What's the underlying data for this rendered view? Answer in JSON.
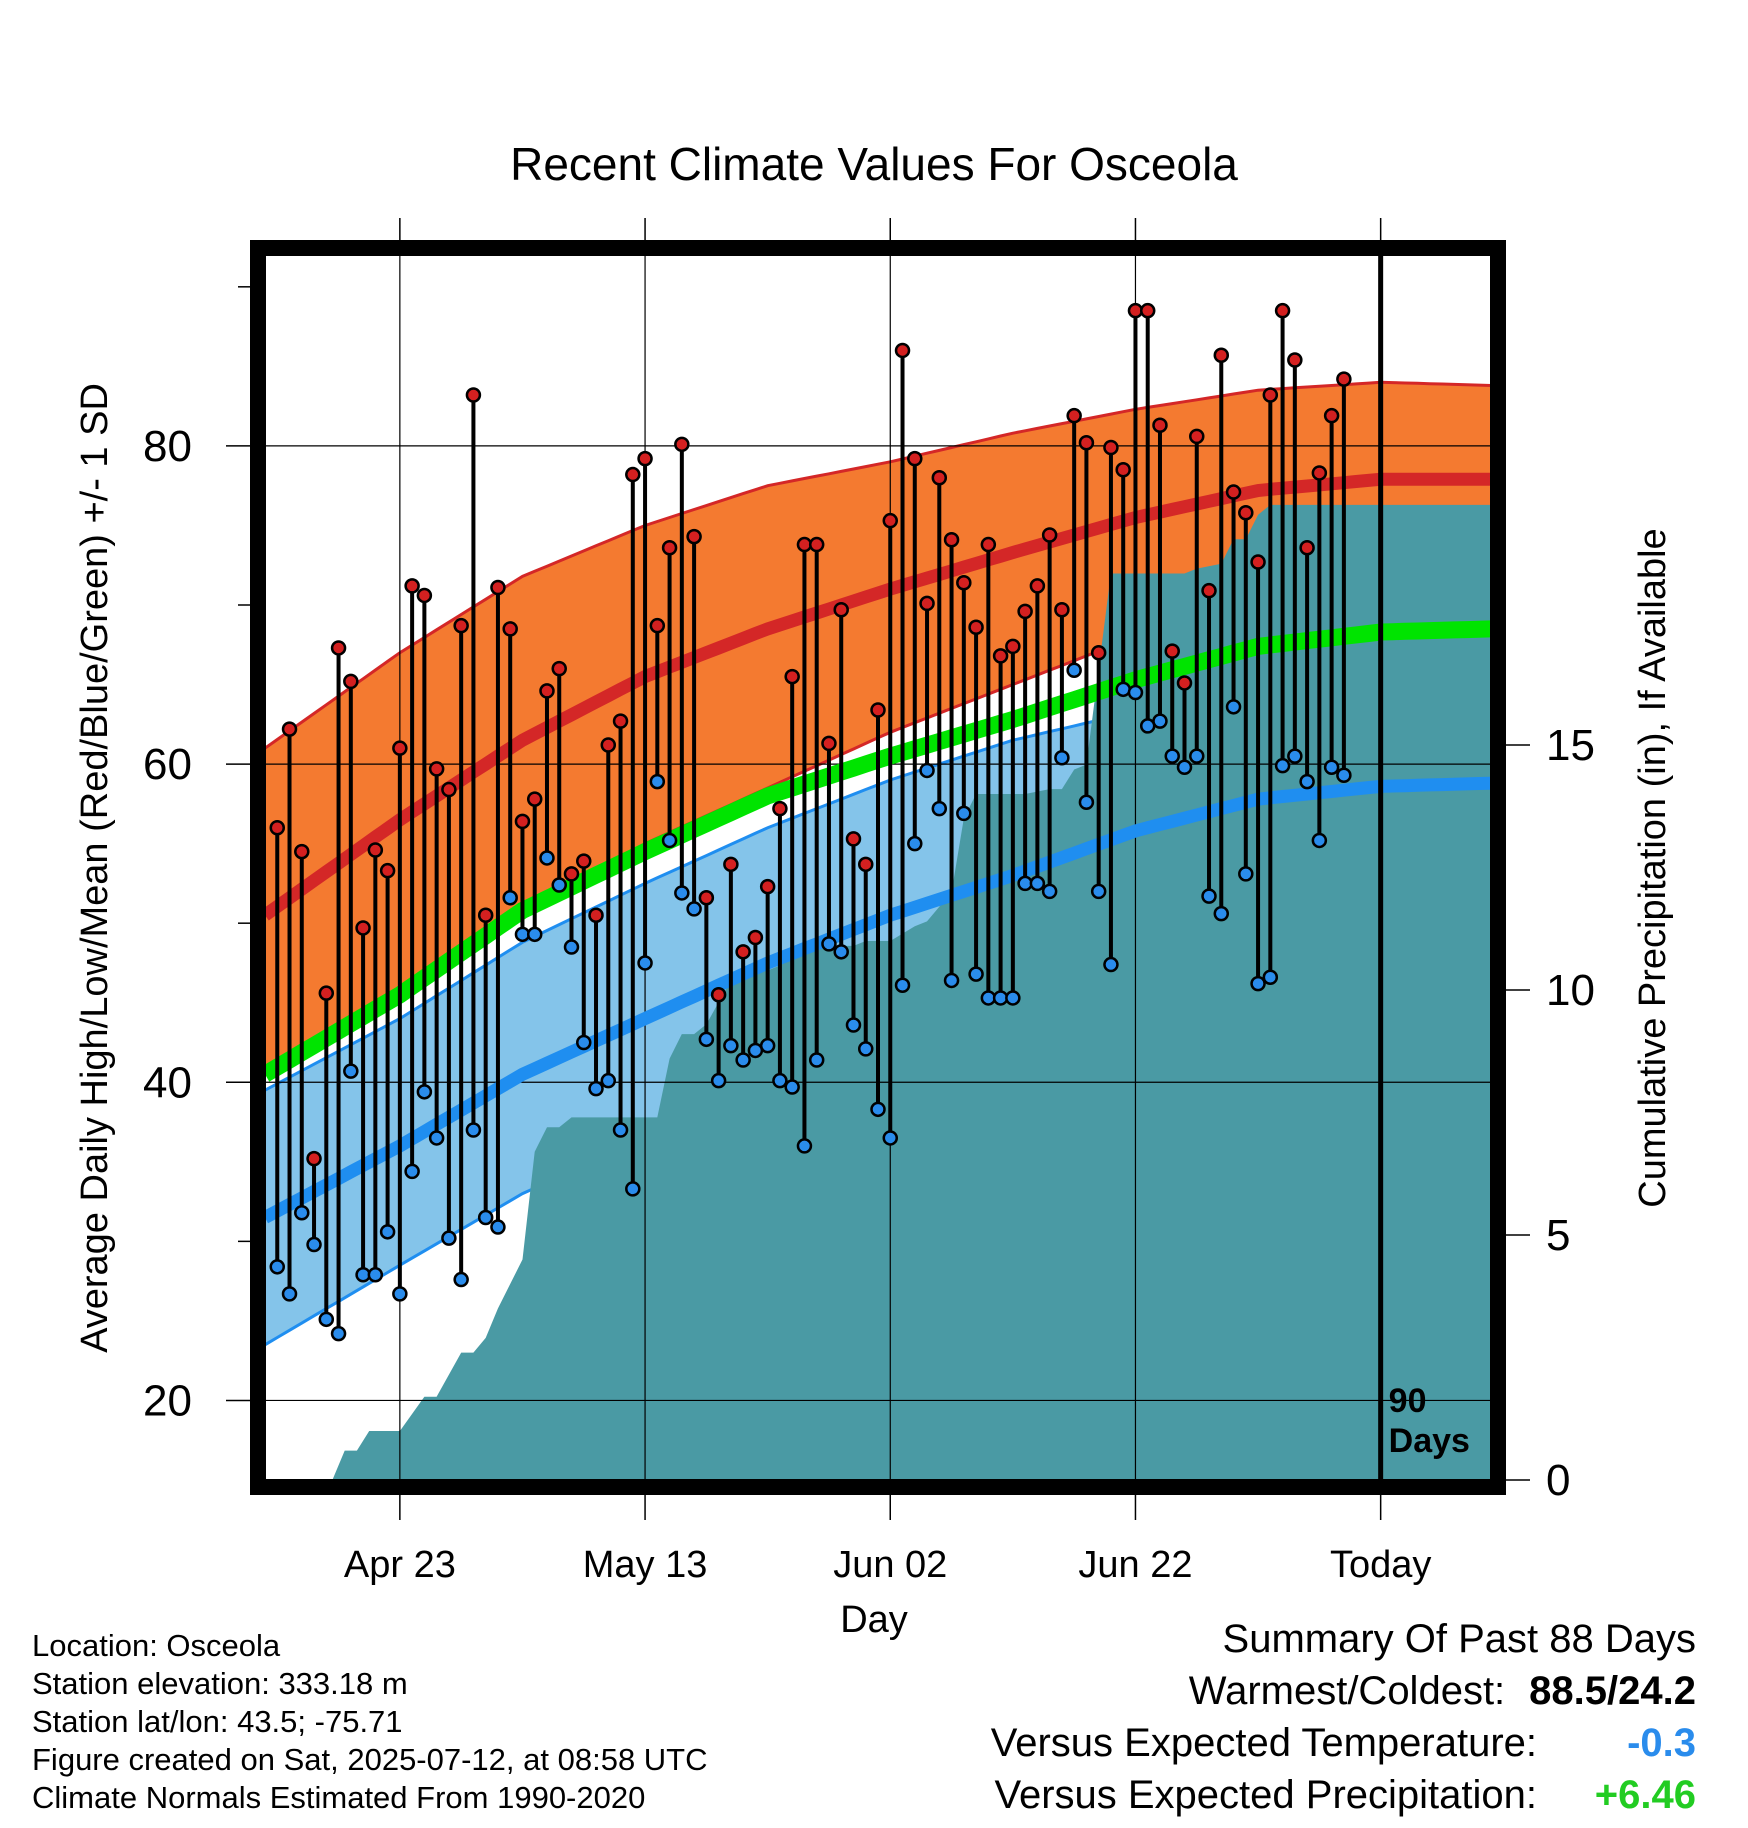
{
  "chart_data": {
    "type": "line",
    "title": "Recent Climate Values For Osceola",
    "xlabel": "Day",
    "ylabel": "Average Daily High/Low/Mean (Red/Blue/Green) +/- 1 SD",
    "y2label": "Cumulative Precipitation (in), If Available",
    "ylim": [
      15,
      92
    ],
    "y2lim": [
      0,
      25
    ],
    "xlim": [
      -91,
      9
    ],
    "x_ticks": [
      {
        "label": "Apr 23",
        "day": -80
      },
      {
        "label": "May 13",
        "day": -60
      },
      {
        "label": "Jun 02",
        "day": -40
      },
      {
        "label": "Jun 22",
        "day": -20
      },
      {
        "label": "Today",
        "day": 0
      }
    ],
    "y_ticks": [
      20,
      40,
      60,
      80
    ],
    "y2_ticks": [
      0,
      5,
      10,
      15
    ],
    "grid": true,
    "today_marker": "90 Days",
    "normals": {
      "day": [
        -91,
        -80,
        -70,
        -60,
        -50,
        -40,
        -30,
        -20,
        -10,
        0,
        9
      ],
      "high_mean": [
        50.5,
        56.5,
        61.5,
        65.5,
        68.5,
        71.0,
        73.3,
        75.5,
        77.2,
        77.9,
        77.9
      ],
      "high_upper": [
        61.0,
        67.0,
        71.8,
        75.0,
        77.5,
        79.0,
        80.8,
        82.3,
        83.5,
        84.0,
        83.8
      ],
      "high_lower": [
        40.5,
        45.5,
        50.5,
        55.0,
        58.5,
        62.0,
        65.0,
        68.0,
        70.5,
        71.7,
        72.2
      ],
      "avg_mean": [
        40.5,
        45.5,
        50.8,
        54.5,
        58.0,
        60.5,
        62.8,
        65.3,
        67.4,
        68.3,
        68.5
      ],
      "low_mean": [
        31.5,
        36.0,
        40.5,
        44.0,
        47.5,
        50.5,
        53.0,
        55.8,
        57.8,
        58.6,
        58.8
      ],
      "low_upper": [
        39.5,
        44.0,
        48.8,
        52.5,
        56.0,
        59.0,
        61.5,
        63.3,
        64.5,
        65.0,
        65.0
      ],
      "low_lower": [
        23.5,
        28.5,
        33.0,
        36.5,
        40.0,
        43.5,
        46.5,
        49.5,
        51.8,
        53.0,
        53.2
      ]
    },
    "daily": {
      "day_start": -90,
      "high": [
        56.0,
        62.2,
        54.5,
        35.2,
        45.6,
        67.3,
        65.2,
        49.7,
        54.6,
        53.3,
        61.0,
        71.2,
        70.6,
        59.7,
        58.4,
        68.7,
        83.2,
        50.5,
        71.1,
        68.5,
        56.4,
        57.8,
        64.6,
        66.0,
        53.1,
        53.9,
        50.5,
        61.2,
        62.7,
        78.2,
        79.2,
        68.7,
        73.6,
        80.1,
        74.3,
        51.6,
        45.5,
        53.7,
        48.2,
        49.1,
        52.3,
        57.2,
        65.5,
        73.8,
        73.8,
        61.3,
        69.7,
        55.3,
        53.7,
        63.4,
        75.3,
        86.0,
        79.2,
        70.1,
        78.0,
        74.1,
        71.4,
        68.6,
        73.8,
        66.8,
        67.4,
        69.6,
        71.2,
        74.4,
        69.7,
        81.9,
        80.2,
        67.0,
        79.9,
        78.5,
        88.5,
        88.5,
        81.3,
        67.1,
        65.1,
        80.6,
        70.9,
        85.7,
        77.1,
        75.8,
        72.7,
        83.2,
        88.5,
        85.4,
        73.6,
        78.3,
        81.9,
        84.2
      ],
      "low": [
        28.4,
        26.7,
        31.8,
        29.8,
        25.1,
        24.2,
        40.7,
        27.9,
        27.9,
        30.6,
        26.7,
        34.4,
        39.4,
        36.5,
        30.2,
        27.6,
        37.0,
        31.5,
        30.9,
        51.6,
        49.3,
        49.3,
        54.1,
        52.4,
        48.5,
        42.5,
        39.6,
        40.1,
        37.0,
        33.3,
        47.5,
        58.9,
        55.2,
        51.9,
        50.9,
        42.7,
        40.1,
        42.3,
        41.4,
        42.0,
        42.3,
        40.1,
        39.7,
        36.0,
        41.4,
        48.7,
        48.2,
        43.6,
        42.1,
        38.3,
        36.5,
        46.1,
        55.0,
        59.6,
        57.2,
        46.4,
        56.9,
        46.8,
        45.3,
        45.3,
        45.3,
        52.5,
        52.5,
        52.0,
        60.4,
        65.9,
        57.6,
        52.0,
        47.4,
        64.7,
        64.5,
        62.4,
        62.7,
        60.5,
        59.8,
        60.5,
        51.7,
        50.6,
        63.6,
        53.1,
        46.2,
        46.6,
        59.9,
        60.5,
        58.9,
        55.2,
        59.8,
        59.3
      ]
    },
    "precip": {
      "day": [
        -91,
        -85.5,
        -84.5,
        -83.5,
        -82.5,
        -80,
        -78,
        -77,
        -75,
        -74,
        -73,
        -72,
        -70,
        -69,
        -68,
        -67,
        -66,
        -65,
        -64,
        -63,
        -59,
        -58,
        -57,
        -56,
        -55,
        -53,
        -52,
        -51,
        -50,
        -49,
        -48,
        -46,
        -44,
        -43,
        -42,
        -41,
        -40,
        -38,
        -37,
        -36,
        -35,
        -34,
        -33,
        -32,
        -31,
        -30,
        -29,
        -27,
        -26,
        -25,
        -24,
        -22,
        -20,
        -16,
        -15,
        -13,
        -12,
        -11,
        -10,
        -9,
        -5,
        0,
        9
      ],
      "value": [
        0,
        0,
        0.6,
        0.6,
        1.0,
        1.0,
        1.7,
        1.7,
        2.6,
        2.6,
        2.9,
        3.5,
        4.5,
        6.7,
        7.2,
        7.2,
        7.4,
        7.4,
        7.4,
        7.4,
        7.4,
        8.6,
        9.1,
        9.1,
        9.3,
        10.2,
        10.4,
        10.4,
        10.4,
        10.5,
        10.7,
        10.9,
        10.9,
        10.9,
        11.0,
        11.0,
        11.0,
        11.3,
        11.4,
        11.7,
        12.0,
        13.5,
        14.0,
        14.0,
        14.0,
        14.0,
        14.0,
        14.1,
        14.1,
        14.5,
        14.6,
        18.5,
        18.5,
        18.5,
        18.6,
        18.7,
        19.2,
        19.2,
        19.7,
        19.9,
        19.9,
        19.9,
        19.9
      ]
    }
  },
  "info": {
    "location": "Location: Osceola",
    "elevation": "Station elevation: 333.18 m",
    "latlon": "Station lat/lon: 43.5; -75.71",
    "created": "Figure created on Sat, 2025-07-12, at 08:58 UTC",
    "normals": "Climate Normals Estimated From 1990-2020"
  },
  "summary": {
    "heading": "Summary Of Past 88 Days",
    "warmest_label": "Warmest/Coldest:",
    "warmest_value": "88.5/24.2",
    "temp_label": "Versus Expected Temperature:",
    "temp_value": "-0.3",
    "precip_label": "Versus Expected Precipitation:",
    "precip_value": "+6.46"
  },
  "colors": {
    "high_band": "#f47a30",
    "high_mean": "#d42727",
    "avg_mean": "#00e400",
    "low_band": "#84c4ea",
    "low_mean": "#1f8ef0",
    "precip": "#4a9aa4",
    "high_dot": "#d42020",
    "low_dot": "#2a8cec",
    "temp_value": "#2a8cec",
    "precip_value": "#22cc22"
  }
}
